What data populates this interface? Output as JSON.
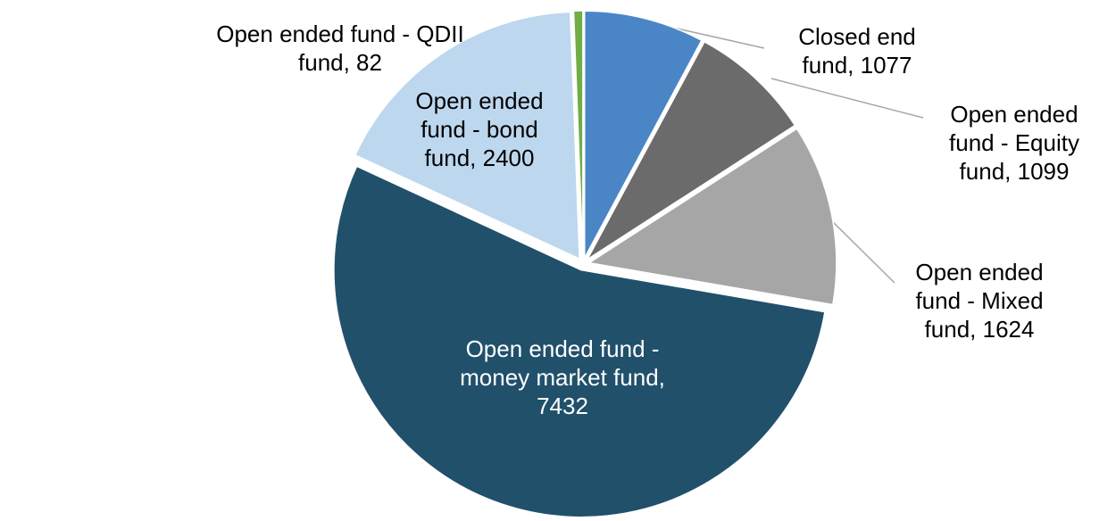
{
  "chart_data": {
    "type": "pie",
    "title": "",
    "direction": "clockwise",
    "start_angle_deg": 0,
    "leader_line_color": "#A6A6A6",
    "slices": [
      {
        "id": "closed-end-fund",
        "label": "Closed end fund",
        "value": 1077,
        "color": "#4A86C6",
        "label_lines": [
          "Closed end",
          "fund, 1077"
        ]
      },
      {
        "id": "open-ended-equity-fund",
        "label": "Open ended fund - Equity fund",
        "value": 1099,
        "color": "#6B6B6B",
        "label_lines": [
          "Open ended",
          "fund - Equity",
          "fund, 1099"
        ]
      },
      {
        "id": "open-ended-mixed-fund",
        "label": "Open ended fund - Mixed fund",
        "value": 1624,
        "color": "#A6A6A6",
        "label_lines": [
          "Open ended",
          "fund - Mixed",
          "fund, 1624"
        ]
      },
      {
        "id": "open-ended-money-market-fund",
        "label": "Open ended fund - money market fund",
        "value": 7432,
        "color": "#21506B",
        "label_lines": [
          "Open ended fund -",
          "money market fund,",
          "7432"
        ]
      },
      {
        "id": "open-ended-bond-fund",
        "label": "Open ended fund - bond fund",
        "value": 2400,
        "color": "#BDD7EE",
        "label_lines": [
          "Open ended",
          "fund - bond",
          "fund, 2400"
        ]
      },
      {
        "id": "open-ended-qdii-fund",
        "label": "Open ended fund - QDII fund",
        "value": 82,
        "color": "#70AD47",
        "label_lines": [
          "Open ended fund - QDII",
          "fund, 82"
        ]
      }
    ]
  }
}
